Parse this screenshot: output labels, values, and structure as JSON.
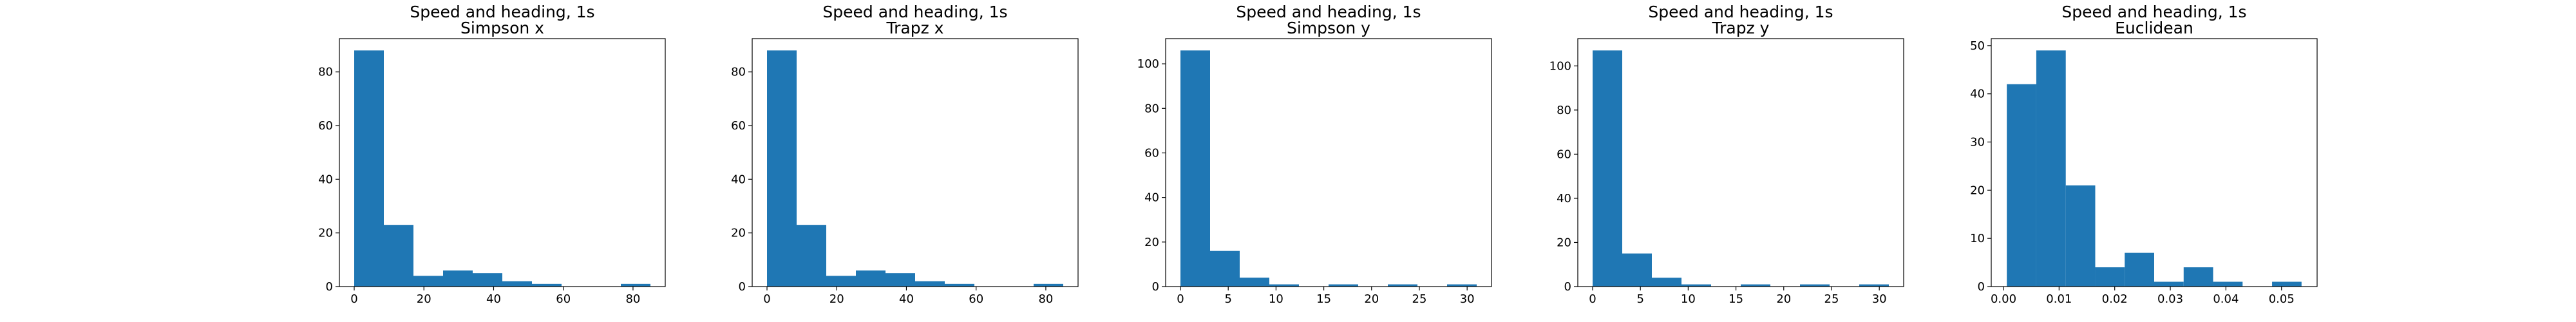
{
  "colors": {
    "bar": "#1f77b4"
  },
  "chart_data": [
    {
      "type": "bar",
      "title": "Speed and heading, 1s",
      "subtitle": "Simpson x",
      "xlim": [
        -4.25,
        89.25
      ],
      "ylim": [
        0,
        92.4
      ],
      "xticks": [
        0,
        20,
        40,
        60,
        80
      ],
      "yticks": [
        0,
        20,
        40,
        60,
        80
      ],
      "bins": [
        0.0,
        8.5,
        17.0,
        25.5,
        34.0,
        42.5,
        51.0,
        59.5,
        68.0,
        76.5,
        85.0
      ],
      "counts": [
        88,
        23,
        4,
        6,
        5,
        2,
        1,
        0,
        0,
        1
      ]
    },
    {
      "type": "bar",
      "title": "Speed and heading, 1s",
      "subtitle": "Trapz x",
      "xlim": [
        -4.25,
        89.25
      ],
      "ylim": [
        0,
        92.4
      ],
      "xticks": [
        0,
        20,
        40,
        60,
        80
      ],
      "yticks": [
        0,
        20,
        40,
        60,
        80
      ],
      "bins": [
        0.0,
        8.5,
        17.0,
        25.5,
        34.0,
        42.5,
        51.0,
        59.5,
        68.0,
        76.5,
        85.0
      ],
      "counts": [
        88,
        23,
        4,
        6,
        5,
        2,
        1,
        0,
        0,
        1
      ]
    },
    {
      "type": "bar",
      "title": "Speed and heading, 1s",
      "subtitle": "Simpson y",
      "xlim": [
        -1.55,
        32.55
      ],
      "ylim": [
        0,
        111.3
      ],
      "xticks": [
        0,
        5,
        10,
        15,
        20,
        25,
        30
      ],
      "yticks": [
        0,
        20,
        40,
        60,
        80,
        100
      ],
      "bins": [
        0.0,
        3.1,
        6.2,
        9.3,
        12.4,
        15.5,
        18.6,
        21.7,
        24.8,
        27.9,
        31.0
      ],
      "counts": [
        106,
        16,
        4,
        1,
        0,
        1,
        0,
        1,
        0,
        1
      ]
    },
    {
      "type": "bar",
      "title": "Speed and heading, 1s",
      "subtitle": "Trapz y",
      "xlim": [
        -1.55,
        32.55
      ],
      "ylim": [
        0,
        112.35
      ],
      "xticks": [
        0,
        5,
        10,
        15,
        20,
        25,
        30
      ],
      "yticks": [
        0,
        20,
        40,
        60,
        80,
        100
      ],
      "bins": [
        0.0,
        3.1,
        6.2,
        9.3,
        12.4,
        15.5,
        18.6,
        21.7,
        24.8,
        27.9,
        31.0
      ],
      "counts": [
        107,
        15,
        4,
        1,
        0,
        1,
        0,
        1,
        0,
        1
      ]
    },
    {
      "type": "bar",
      "title": "Speed and heading, 1s",
      "subtitle": "Euclidean",
      "xlim": [
        -0.0022,
        0.0564
      ],
      "ylim": [
        0,
        51.45
      ],
      "xticks": [
        0.0,
        0.01,
        0.02,
        0.03,
        0.04,
        0.05
      ],
      "xtick_labels": [
        "0.00",
        "0.01",
        "0.02",
        "0.03",
        "0.04",
        "0.05"
      ],
      "yticks": [
        0,
        10,
        20,
        30,
        40,
        50
      ],
      "bins": [
        0.0006,
        0.0059,
        0.0112,
        0.0165,
        0.0218,
        0.0271,
        0.0324,
        0.0377,
        0.043,
        0.0483,
        0.0536
      ],
      "counts": [
        42,
        49,
        21,
        4,
        7,
        1,
        4,
        1,
        0,
        1
      ]
    }
  ]
}
